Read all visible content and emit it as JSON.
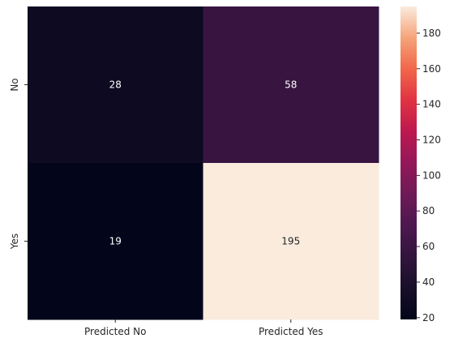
{
  "chart_data": {
    "type": "heatmap",
    "title": "",
    "xlabel": "",
    "ylabel": "",
    "x_categories": [
      "Predicted No",
      "Predicted Yes"
    ],
    "y_categories": [
      "No",
      "Yes"
    ],
    "values": [
      [
        28,
        58
      ],
      [
        19,
        195
      ]
    ],
    "colorbar": {
      "min": 19,
      "max": 195,
      "ticks": [
        20,
        40,
        60,
        80,
        100,
        120,
        140,
        160,
        180
      ],
      "colormap": "rocket"
    },
    "grid": false,
    "legend": "colorbar-right"
  }
}
